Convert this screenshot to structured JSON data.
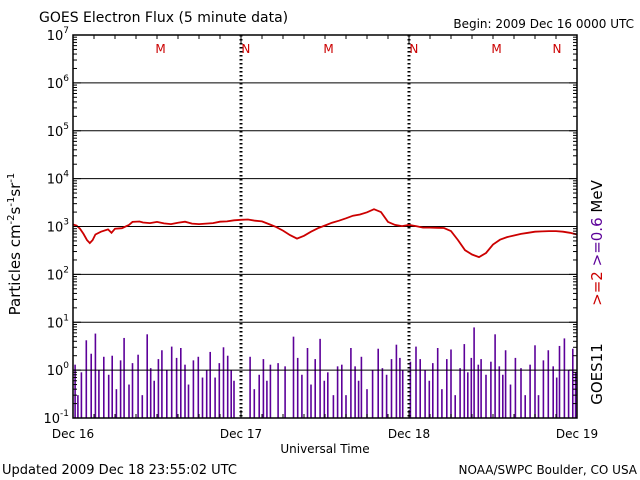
{
  "chart_data": {
    "type": "line",
    "title": "GOES Electron Flux (5 minute data)",
    "begin_label": "Begin: 2009 Dec 16 0000 UTC",
    "ylabel": "Particles cm",
    "ylabel_sup1": "-2",
    "ylabel_mid": "s",
    "ylabel_sup2": "-1",
    "ylabel_mid2": "sr",
    "ylabel_sup3": "-1",
    "xlabel": "Universal Time",
    "ylim": [
      0.1,
      10000000
    ],
    "yscale": "log",
    "ytick_values": [
      10000000,
      1000000,
      100000,
      10000,
      1000,
      100,
      10,
      1,
      0.1
    ],
    "ytick_exponents": [
      "7",
      "6",
      "5",
      "4",
      "3",
      "2",
      "1",
      "0",
      "-1"
    ],
    "ytick_base": "10",
    "xlim_hours": [
      0,
      72
    ],
    "x_ticks": [
      {
        "hour": 0,
        "label": "Dec 16"
      },
      {
        "hour": 24,
        "label": "Dec 17"
      },
      {
        "hour": 48,
        "label": "Dec 18"
      },
      {
        "hour": 72,
        "label": "Dec 19"
      }
    ],
    "local_markers": [
      {
        "hour": 12.5,
        "label": "M"
      },
      {
        "hour": 24.7,
        "label": "N"
      },
      {
        "hour": 36.5,
        "label": "M"
      },
      {
        "hour": 48.7,
        "label": "N"
      },
      {
        "hour": 60.5,
        "label": "M"
      },
      {
        "hour": 72.5,
        "label": "N"
      }
    ],
    "threshold": 1000,
    "series": [
      {
        "name": ">=2 MeV",
        "color": "#cc0000",
        "points": [
          [
            0,
            1100
          ],
          [
            0.5,
            1050
          ],
          [
            1,
            900
          ],
          [
            1.5,
            700
          ],
          [
            2,
            520
          ],
          [
            2.4,
            450
          ],
          [
            2.8,
            520
          ],
          [
            3.2,
            680
          ],
          [
            4,
            780
          ],
          [
            5,
            870
          ],
          [
            5.5,
            740
          ],
          [
            6,
            900
          ],
          [
            7,
            920
          ],
          [
            8,
            1080
          ],
          [
            8.5,
            1250
          ],
          [
            9.5,
            1270
          ],
          [
            10,
            1210
          ],
          [
            11,
            1180
          ],
          [
            12,
            1250
          ],
          [
            13,
            1160
          ],
          [
            14,
            1120
          ],
          [
            15,
            1200
          ],
          [
            16,
            1260
          ],
          [
            17,
            1150
          ],
          [
            18,
            1120
          ],
          [
            19,
            1150
          ],
          [
            20,
            1180
          ],
          [
            21,
            1260
          ],
          [
            22,
            1280
          ],
          [
            23,
            1350
          ],
          [
            24,
            1380
          ],
          [
            25,
            1400
          ],
          [
            26,
            1320
          ],
          [
            27,
            1280
          ],
          [
            28,
            1120
          ],
          [
            29,
            980
          ],
          [
            30,
            820
          ],
          [
            31,
            660
          ],
          [
            32,
            560
          ],
          [
            33,
            640
          ],
          [
            34,
            780
          ],
          [
            35,
            920
          ],
          [
            36,
            1050
          ],
          [
            37,
            1200
          ],
          [
            38,
            1320
          ],
          [
            39,
            1480
          ],
          [
            40,
            1680
          ],
          [
            41,
            1780
          ],
          [
            42,
            1980
          ],
          [
            43,
            2300
          ],
          [
            44,
            2000
          ],
          [
            45,
            1250
          ],
          [
            46,
            1080
          ],
          [
            47,
            1020
          ],
          [
            48,
            1080
          ],
          [
            49,
            1020
          ],
          [
            50,
            950
          ],
          [
            51,
            950
          ],
          [
            52,
            940
          ],
          [
            53,
            930
          ],
          [
            54,
            800
          ],
          [
            55,
            520
          ],
          [
            56,
            320
          ],
          [
            57,
            260
          ],
          [
            58,
            230
          ],
          [
            59,
            280
          ],
          [
            60,
            420
          ],
          [
            61,
            530
          ],
          [
            62,
            600
          ],
          [
            63,
            650
          ],
          [
            64,
            700
          ],
          [
            65,
            740
          ],
          [
            66,
            780
          ],
          [
            67,
            790
          ],
          [
            68,
            800
          ],
          [
            69,
            800
          ],
          [
            70,
            780
          ],
          [
            71,
            740
          ],
          [
            72,
            680
          ]
        ]
      }
    ],
    "spike_series_name": ">=0.6 MeV",
    "spike_color": "#5c0099",
    "spikes": [
      [
        0.3,
        1.3
      ],
      [
        0.7,
        0.3
      ],
      [
        1.2,
        0.9
      ],
      [
        1.9,
        4.2
      ],
      [
        2.6,
        2.2
      ],
      [
        3.2,
        5.8
      ],
      [
        3.7,
        1.0
      ],
      [
        4.4,
        1.9
      ],
      [
        5.1,
        0.8
      ],
      [
        5.6,
        2.0
      ],
      [
        6.2,
        0.4
      ],
      [
        6.8,
        1.6
      ],
      [
        7.3,
        4.7
      ],
      [
        8.0,
        0.5
      ],
      [
        8.5,
        1.4
      ],
      [
        9.3,
        2.1
      ],
      [
        9.9,
        0.3
      ],
      [
        10.6,
        5.6
      ],
      [
        11.1,
        1.1
      ],
      [
        11.6,
        0.6
      ],
      [
        12.2,
        1.7
      ],
      [
        12.7,
        2.6
      ],
      [
        13.4,
        1.0
      ],
      [
        14.1,
        3.1
      ],
      [
        14.8,
        1.8
      ],
      [
        15.4,
        2.9
      ],
      [
        16.0,
        1.3
      ],
      [
        16.5,
        0.5
      ],
      [
        17.2,
        1.6
      ],
      [
        17.9,
        1.9
      ],
      [
        18.5,
        0.7
      ],
      [
        19.1,
        1.0
      ],
      [
        19.6,
        2.4
      ],
      [
        20.3,
        0.7
      ],
      [
        20.9,
        1.4
      ],
      [
        21.5,
        3.0
      ],
      [
        22.1,
        2.0
      ],
      [
        22.6,
        1.0
      ],
      [
        23.0,
        0.6
      ],
      [
        25.3,
        1.9
      ],
      [
        25.9,
        0.4
      ],
      [
        26.6,
        0.8
      ],
      [
        27.2,
        1.7
      ],
      [
        27.7,
        0.6
      ],
      [
        28.2,
        1.3
      ],
      [
        29.3,
        1.4
      ],
      [
        30.3,
        1.2
      ],
      [
        31.5,
        5.0
      ],
      [
        32.1,
        1.8
      ],
      [
        32.7,
        0.8
      ],
      [
        33.5,
        2.9
      ],
      [
        34.0,
        0.5
      ],
      [
        34.6,
        1.7
      ],
      [
        35.3,
        4.5
      ],
      [
        35.9,
        0.6
      ],
      [
        36.4,
        0.9
      ],
      [
        37.2,
        0.3
      ],
      [
        37.8,
        1.2
      ],
      [
        38.4,
        1.3
      ],
      [
        39.0,
        0.3
      ],
      [
        39.7,
        2.9
      ],
      [
        40.3,
        1.2
      ],
      [
        40.8,
        0.6
      ],
      [
        41.2,
        1.9
      ],
      [
        42.0,
        0.4
      ],
      [
        42.8,
        1.0
      ],
      [
        43.6,
        2.8
      ],
      [
        44.2,
        1.1
      ],
      [
        44.8,
        0.8
      ],
      [
        45.5,
        1.7
      ],
      [
        46.2,
        3.4
      ],
      [
        46.7,
        1.8
      ],
      [
        47.1,
        1.0
      ],
      [
        48.2,
        1.5
      ],
      [
        49.0,
        3.1
      ],
      [
        49.6,
        1.7
      ],
      [
        50.3,
        1.0
      ],
      [
        50.9,
        0.6
      ],
      [
        51.4,
        1.4
      ],
      [
        52.1,
        2.9
      ],
      [
        52.7,
        0.4
      ],
      [
        53.4,
        1.7
      ],
      [
        54.0,
        2.7
      ],
      [
        54.6,
        0.3
      ],
      [
        55.3,
        1.1
      ],
      [
        55.9,
        3.5
      ],
      [
        56.4,
        0.9
      ],
      [
        56.9,
        1.8
      ],
      [
        57.3,
        7.8
      ],
      [
        57.9,
        1.3
      ],
      [
        58.3,
        1.7
      ],
      [
        59.0,
        0.8
      ],
      [
        59.7,
        1.5
      ],
      [
        60.3,
        5.6
      ],
      [
        60.9,
        1.2
      ],
      [
        61.4,
        0.8
      ],
      [
        61.8,
        2.6
      ],
      [
        62.5,
        0.5
      ],
      [
        63.2,
        1.8
      ],
      [
        64.0,
        1.1
      ],
      [
        64.6,
        0.3
      ],
      [
        65.3,
        1.3
      ],
      [
        66.0,
        3.3
      ],
      [
        66.5,
        0.3
      ],
      [
        67.2,
        1.6
      ],
      [
        67.9,
        2.6
      ],
      [
        68.6,
        1.2
      ],
      [
        69.1,
        0.7
      ],
      [
        69.5,
        3.2
      ],
      [
        70.2,
        4.6
      ],
      [
        70.8,
        1.0
      ],
      [
        71.4,
        2.8
      ],
      [
        71.8,
        0.9
      ]
    ]
  },
  "right_labels": {
    "energy_hi": ">=2",
    "energy_lo": ">=0.6",
    "unit": "MeV",
    "satellite": "GOES11",
    "color_hi": "#cc0000",
    "color_lo": "#5c0099"
  },
  "footer": {
    "updated": "Updated 2009 Dec 18 23:55:02 UTC",
    "source": "NOAA/SWPC Boulder, CO USA"
  }
}
